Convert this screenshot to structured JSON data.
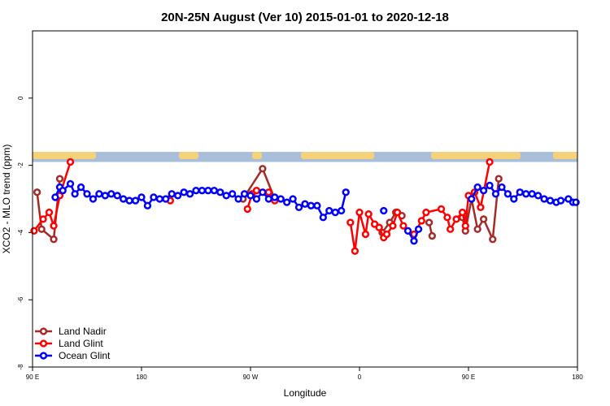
{
  "chart_data": {
    "type": "line",
    "title": "20N-25N August (Ver 10)   2015-01-01 to 2020-12-18",
    "xlabel": "Longitude",
    "ylabel": "XCO2 - MLO trend (ppm)",
    "xlim": [
      90,
      270
    ],
    "ylim": [
      -8,
      2
    ],
    "x_ticks": [
      {
        "value": 90,
        "label": "90 E"
      },
      {
        "value": 126,
        "label": "180"
      },
      {
        "value": 162,
        "label": "90 W"
      },
      {
        "value": 198,
        "label": "0"
      },
      {
        "value": 234,
        "label": "90 E"
      },
      {
        "value": 270,
        "label": "180"
      }
    ],
    "y_ticks": [
      {
        "value": -8,
        "label": "-8"
      },
      {
        "value": -6,
        "label": "-6"
      },
      {
        "value": -4,
        "label": "-4"
      },
      {
        "value": -2,
        "label": "-2"
      },
      {
        "value": 0,
        "label": "0"
      }
    ],
    "map_band": {
      "y_bottom": -1.9,
      "y_top": -1.6,
      "ocean_color": "#a9bed9",
      "land_color": "#f5d27a"
    },
    "legend_position": "bottom-left",
    "series": [
      {
        "name": "Land Nadir",
        "color": "#a52a2a",
        "points": [
          [
            91.5,
            -2.8
          ],
          [
            93,
            -3.9
          ],
          [
            97,
            -4.2
          ],
          [
            99,
            -2.4
          ],
          [
            159.5,
            -3.0
          ],
          [
            166,
            -2.1
          ],
          [
            170,
            -3.0
          ],
          [
            205.5,
            -4.0
          ],
          [
            208,
            -3.7
          ],
          [
            210,
            -3.4
          ],
          [
            212,
            -3.5
          ],
          [
            221,
            -3.7
          ],
          [
            222,
            -4.1
          ],
          [
            232,
            -3.55
          ],
          [
            233,
            -3.95
          ],
          [
            235,
            -3.0
          ],
          [
            237,
            -3.9
          ],
          [
            239,
            -3.6
          ],
          [
            242,
            -4.2
          ],
          [
            244,
            -2.4
          ]
        ]
      },
      {
        "name": "Land Glint",
        "color": "#ff0000",
        "points": [
          [
            90.5,
            -3.95
          ],
          [
            93.5,
            -3.6
          ],
          [
            95.5,
            -3.4
          ],
          [
            97,
            -3.8
          ],
          [
            99,
            -2.9
          ],
          [
            102.5,
            -1.9
          ],
          [
            135.5,
            -3.05
          ],
          [
            161,
            -3.3
          ],
          [
            162.5,
            -2.85
          ],
          [
            164,
            -2.75
          ],
          [
            168,
            -2.8
          ],
          [
            170,
            -3.05
          ],
          [
            195,
            -3.7
          ],
          [
            196.5,
            -4.55
          ],
          [
            198,
            -3.4
          ],
          [
            200,
            -4.05
          ],
          [
            201,
            -3.45
          ],
          [
            203,
            -3.75
          ],
          [
            204.5,
            -3.85
          ],
          [
            206,
            -4.15
          ],
          [
            207,
            -4.05
          ],
          [
            209,
            -3.8
          ],
          [
            210.5,
            -3.4
          ],
          [
            212.5,
            -3.8
          ],
          [
            216,
            -4.05
          ],
          [
            218.5,
            -3.65
          ],
          [
            220,
            -3.4
          ],
          [
            225,
            -3.3
          ],
          [
            227,
            -3.55
          ],
          [
            228,
            -3.9
          ],
          [
            230,
            -3.6
          ],
          [
            232,
            -3.4
          ],
          [
            233,
            -3.8
          ],
          [
            234,
            -2.9
          ],
          [
            236,
            -2.8
          ],
          [
            238,
            -3.25
          ],
          [
            241,
            -1.9
          ]
        ]
      },
      {
        "name": "Ocean Glint",
        "color": "#0000ff",
        "points": [
          [
            97.5,
            -2.95
          ],
          [
            99,
            -2.65
          ],
          [
            100,
            -2.75
          ],
          [
            102.5,
            -2.55
          ],
          [
            104,
            -2.85
          ],
          [
            106,
            -2.65
          ],
          [
            108,
            -2.85
          ],
          [
            110,
            -3.0
          ],
          [
            112,
            -2.85
          ],
          [
            114,
            -2.9
          ],
          [
            116,
            -2.85
          ],
          [
            118,
            -2.9
          ],
          [
            120,
            -3.0
          ],
          [
            122,
            -3.05
          ],
          [
            124,
            -3.05
          ],
          [
            126,
            -2.95
          ],
          [
            128,
            -3.2
          ],
          [
            130,
            -2.95
          ],
          [
            132,
            -3.0
          ],
          [
            134,
            -3.0
          ],
          [
            136,
            -2.85
          ],
          [
            138,
            -2.9
          ],
          [
            140,
            -2.8
          ],
          [
            142,
            -2.85
          ],
          [
            144,
            -2.75
          ],
          [
            146,
            -2.75
          ],
          [
            148,
            -2.75
          ],
          [
            150,
            -2.75
          ],
          [
            152,
            -2.8
          ],
          [
            154,
            -2.9
          ],
          [
            156,
            -2.85
          ],
          [
            158,
            -3.0
          ],
          [
            160,
            -2.85
          ],
          [
            162,
            -2.9
          ],
          [
            164,
            -3.0
          ],
          [
            166,
            -2.8
          ],
          [
            168,
            -3.0
          ],
          [
            170,
            -2.95
          ],
          [
            172,
            -3.0
          ],
          [
            174,
            -3.1
          ],
          [
            176,
            -3.0
          ],
          [
            178,
            -3.25
          ],
          [
            180,
            -3.15
          ],
          [
            182,
            -3.2
          ],
          [
            184,
            -3.2
          ],
          [
            186,
            -3.55
          ],
          [
            188,
            -3.35
          ],
          [
            190,
            -3.4
          ],
          [
            192,
            -3.35
          ],
          [
            193.5,
            -2.8
          ],
          [
            206,
            -3.35
          ],
          [
            214,
            -3.95
          ],
          [
            216,
            -4.25
          ],
          [
            217.5,
            -3.9
          ],
          [
            235,
            -3.0
          ],
          [
            237,
            -2.65
          ],
          [
            239,
            -2.75
          ],
          [
            241,
            -2.6
          ],
          [
            243,
            -2.85
          ],
          [
            245,
            -2.65
          ],
          [
            247,
            -2.85
          ],
          [
            249,
            -3.0
          ],
          [
            251,
            -2.8
          ],
          [
            253,
            -2.85
          ],
          [
            255,
            -2.85
          ],
          [
            257,
            -2.9
          ],
          [
            259,
            -3.0
          ],
          [
            261,
            -3.05
          ],
          [
            263,
            -3.1
          ],
          [
            264.5,
            -3.05
          ],
          [
            267,
            -3.0
          ],
          [
            268.5,
            -3.1
          ],
          [
            269.5,
            -3.1
          ]
        ]
      }
    ]
  }
}
